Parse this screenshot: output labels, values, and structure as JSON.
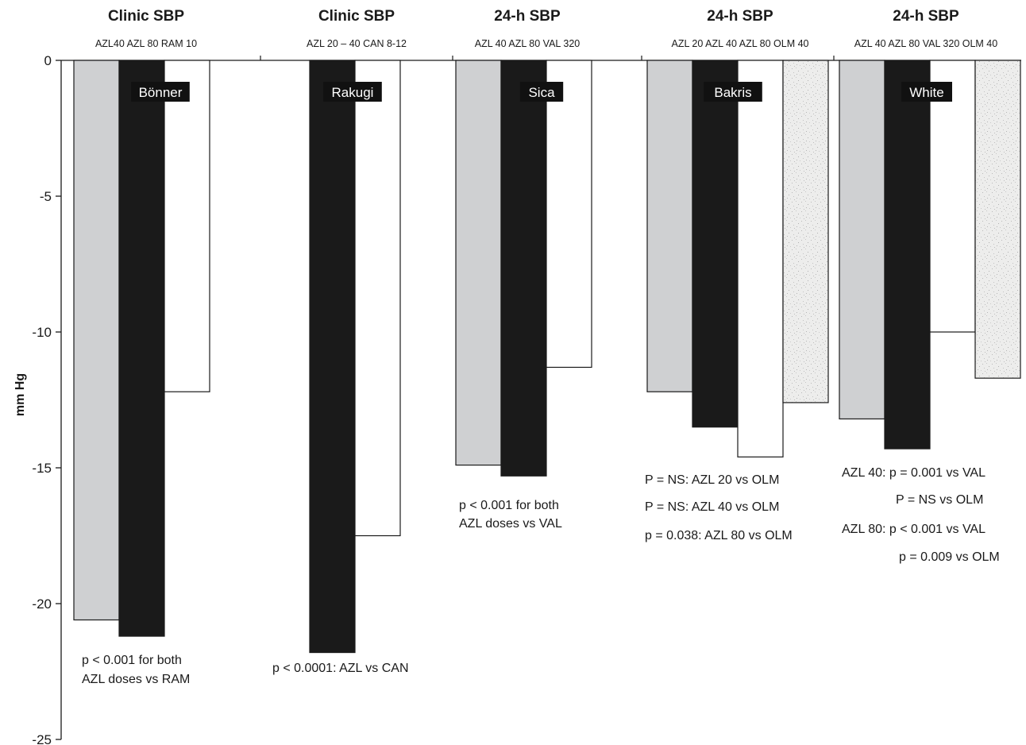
{
  "chart_data": {
    "type": "bar",
    "ylabel": "mm Hg",
    "ylim": [
      -25,
      0
    ],
    "yticks": [
      0,
      -5,
      -10,
      -15,
      -20,
      -25
    ],
    "grid": false,
    "colors": {
      "AZL 20": "#cfd0d2",
      "AZL 40": "#cfd0d2",
      "AZL 80": "#1a1a1a",
      "comparator": "#ffffff",
      "OLM 40": "#ebebea"
    },
    "groups": [
      {
        "title": "Clinic SBP",
        "drugs_label": "AZL40 AZL 80 RAM 10",
        "study": "Bönner",
        "bars": [
          {
            "drug": "AZL 40",
            "value": -20.6,
            "fill": "light"
          },
          {
            "drug": "AZL 80",
            "value": -21.2,
            "fill": "dark"
          },
          {
            "drug": "RAM 10",
            "value": -12.2,
            "fill": "white"
          }
        ],
        "notes": [
          "p < 0.001 for both",
          "AZL doses vs RAM"
        ]
      },
      {
        "title": "Clinic SBP",
        "drugs_label": "AZL 20 – 40 CAN 8-12",
        "study": "Rakugi",
        "bars": [
          {
            "drug": "AZL 20 – 40",
            "value": -21.8,
            "fill": "dark"
          },
          {
            "drug": "CAN 8-12",
            "value": -17.5,
            "fill": "white"
          }
        ],
        "notes": [
          "p < 0.0001: AZL vs CAN"
        ]
      },
      {
        "title": "24-h SBP",
        "drugs_label": "AZL 40 AZL 80 VAL 320",
        "study": "Sica",
        "bars": [
          {
            "drug": "AZL 40",
            "value": -14.9,
            "fill": "light"
          },
          {
            "drug": "AZL 80",
            "value": -15.3,
            "fill": "dark"
          },
          {
            "drug": "VAL 320",
            "value": -11.3,
            "fill": "white"
          }
        ],
        "notes": [
          "p < 0.001 for both",
          "AZL doses vs VAL"
        ]
      },
      {
        "title": "24-h SBP",
        "drugs_label": "AZL 20 AZL 40 AZL 80 OLM 40",
        "study": "Bakris",
        "bars": [
          {
            "drug": "AZL 20",
            "value": -12.2,
            "fill": "light"
          },
          {
            "drug": "AZL 40",
            "value": -13.5,
            "fill": "dark"
          },
          {
            "drug": "AZL 80",
            "value": -14.6,
            "fill": "white"
          },
          {
            "drug": "OLM 40",
            "value": -12.6,
            "fill": "speckle"
          }
        ],
        "notes": [
          "P = NS: AZL 20 vs OLM",
          "P = NS: AZL 40 vs OLM",
          "p = 0.038: AZL 80 vs OLM"
        ]
      },
      {
        "title": "24-h SBP",
        "drugs_label": "AZL 40 AZL 80 VAL 320 OLM 40",
        "study": "White",
        "bars": [
          {
            "drug": "AZL 40",
            "value": -13.2,
            "fill": "light"
          },
          {
            "drug": "AZL 80",
            "value": -14.3,
            "fill": "dark"
          },
          {
            "drug": "VAL 320",
            "value": -10.0,
            "fill": "white"
          },
          {
            "drug": "OLM 40",
            "value": -11.7,
            "fill": "speckle"
          }
        ],
        "notes": [
          "AZL 40: p = 0.001 vs VAL",
          "P = NS vs OLM",
          "AZL 80: p < 0.001 vs VAL",
          "p = 0.009 vs OLM"
        ]
      }
    ]
  }
}
